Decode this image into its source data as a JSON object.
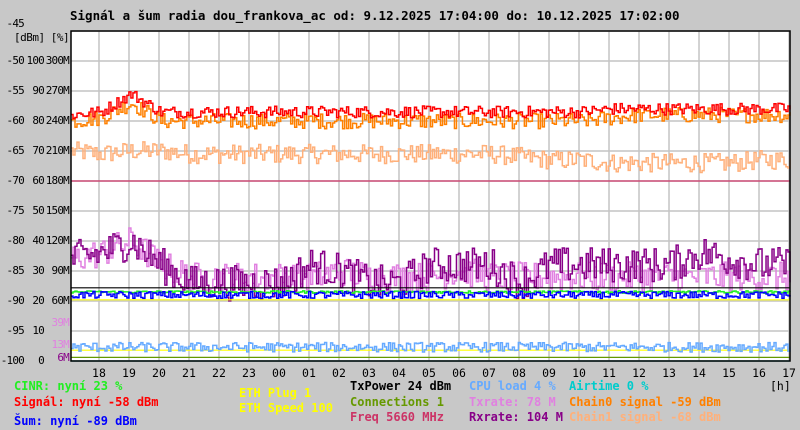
{
  "chart_data": {
    "type": "line",
    "title": "Signál a šum radia dou_frankova_ac od: 9.12.2025 17:04:00 do: 10.12.2025 17:02:00",
    "units_label": "[dBm] [%]",
    "xlabel": "[h]",
    "x_start_hour": 17.067,
    "x_end_hour": 41.033,
    "ylim": [
      -100,
      -45
    ],
    "grid": true,
    "x_ticks": [
      "18",
      "19",
      "20",
      "21",
      "22",
      "23",
      "00",
      "01",
      "02",
      "03",
      "04",
      "05",
      "06",
      "07",
      "08",
      "09",
      "10",
      "11",
      "12",
      "13",
      "14",
      "15",
      "16",
      "17"
    ],
    "y_ticks": [
      {
        "dbm": -45,
        "labels": [
          "-45",
          "",
          ""
        ]
      },
      {
        "dbm": -50,
        "labels": [
          "-50",
          "100",
          "300M"
        ]
      },
      {
        "dbm": -55,
        "labels": [
          "-55",
          "90",
          "270M"
        ]
      },
      {
        "dbm": -60,
        "labels": [
          "-60",
          "80",
          "240M"
        ]
      },
      {
        "dbm": -65,
        "labels": [
          "-65",
          "70",
          "210M"
        ]
      },
      {
        "dbm": -70,
        "labels": [
          "-70",
          "60",
          "180M"
        ]
      },
      {
        "dbm": -75,
        "labels": [
          "-75",
          "50",
          "150M"
        ]
      },
      {
        "dbm": -80,
        "labels": [
          "-80",
          "40",
          "120M"
        ]
      },
      {
        "dbm": -85,
        "labels": [
          "-85",
          "30",
          "90M"
        ]
      },
      {
        "dbm": -90,
        "labels": [
          "-90",
          "20",
          "60M"
        ]
      },
      {
        "dbm": -95,
        "labels": [
          "-95",
          "10",
          ""
        ]
      },
      {
        "dbm": -100,
        "labels": [
          "-100",
          "0",
          ""
        ]
      }
    ],
    "extra_ticks": [
      {
        "dbm": -93.6,
        "label": "39M",
        "color": "#e080e0"
      },
      {
        "dbm": -98.2,
        "label": "13M",
        "color": "#e080e0"
      },
      {
        "dbm": -99.5,
        "label": "6M",
        "color": "#880088"
      }
    ],
    "series": [
      {
        "name": "Chain1 signal",
        "color": "#ffb07a",
        "jitter": 1.6,
        "values": [
          -65,
          -65.5,
          -65,
          -65,
          -65.5,
          -65.5,
          -65.5,
          -65.5,
          -65.5,
          -65.5,
          -65.5,
          -65.5,
          -65.5,
          -65.5,
          -65.5,
          -66,
          -66.5,
          -66.5,
          -67,
          -67,
          -67,
          -67,
          -67,
          -66.5,
          -66.5
        ]
      },
      {
        "name": "Chain0 signal",
        "color": "#ff8000",
        "jitter": 1.3,
        "values": [
          -60,
          -59.5,
          -57,
          -60,
          -60,
          -60,
          -60,
          -60,
          -60,
          -60,
          -60,
          -60,
          -60,
          -60,
          -60,
          -60,
          -60,
          -60,
          -59.5,
          -59,
          -59,
          -59,
          -59,
          -59,
          -59
        ]
      },
      {
        "name": "Signál",
        "color": "#ff0000",
        "jitter": 1.0,
        "values": [
          -59,
          -58.5,
          -55.5,
          -58.5,
          -58.5,
          -58.5,
          -58.5,
          -58.5,
          -58.5,
          -58.5,
          -58.5,
          -58.5,
          -58.5,
          -58.5,
          -58.5,
          -58.5,
          -58.5,
          -58.5,
          -58,
          -58,
          -58,
          -58,
          -58,
          -58,
          -58
        ]
      },
      {
        "name": "Freq",
        "color": "#cc3366",
        "jitter": 0,
        "values": [
          -70,
          -70,
          -70,
          -70,
          -70,
          -70,
          -70,
          -70,
          -70,
          -70,
          -70,
          -70,
          -70,
          -70,
          -70,
          -70,
          -70,
          -70,
          -70,
          -70,
          -70,
          -70,
          -70,
          -70,
          -70
        ]
      },
      {
        "name": "Txrate",
        "color": "#e080e0",
        "jitter": 2.5,
        "values": [
          -83,
          -82,
          -80,
          -84,
          -86,
          -86,
          -86,
          -86,
          -86,
          -85,
          -86,
          -86,
          -86,
          -85,
          -86,
          -86,
          -86,
          -86,
          -86,
          -86,
          -86,
          -86,
          -86,
          -86,
          -86
        ]
      },
      {
        "name": "Rxrate",
        "color": "#880088",
        "jitter": 3.0,
        "values": [
          -83,
          -82,
          -80,
          -84,
          -87,
          -87,
          -87,
          -87,
          -84,
          -85,
          -87,
          -87,
          -84,
          -84,
          -84,
          -87,
          -84,
          -84,
          -84,
          -84,
          -84,
          -82,
          -83,
          -84,
          -84
        ]
      },
      {
        "name": "TxPower",
        "color": "#000000",
        "jitter": 0,
        "values": [
          -87.8,
          -87.8,
          -87.8,
          -87.8,
          -87.8,
          -87.8,
          -87.8,
          -87.8,
          -87.8,
          -87.8,
          -87.8,
          -87.8,
          -87.8,
          -87.8,
          -87.8,
          -87.8,
          -87.8,
          -87.8,
          -87.8,
          -87.8,
          -87.8,
          -87.8,
          -87.8,
          -87.8,
          -87.8
        ]
      },
      {
        "name": "CINR",
        "color": "#22ee22",
        "jitter": 0.2,
        "values": [
          -88.5,
          -88.5,
          -88.5,
          -88.5,
          -88.5,
          -88.5,
          -88.5,
          -88.5,
          -88.5,
          -88.5,
          -88.5,
          -88.5,
          -88.5,
          -88.5,
          -88.5,
          -88.5,
          -88.5,
          -88.5,
          -88.5,
          -88.5,
          -88.5,
          -88.5,
          -88.5,
          -88.5,
          -88.5
        ]
      },
      {
        "name": "Šum",
        "color": "#0000ff",
        "jitter": 0.6,
        "values": [
          -89,
          -89,
          -89,
          -89,
          -89,
          -89,
          -89,
          -89,
          -89,
          -89,
          -89,
          -89,
          -89,
          -89,
          -89,
          -89,
          -89,
          -89,
          -89,
          -89,
          -89,
          -89,
          -89,
          -89,
          -89
        ]
      },
      {
        "name": "ETH Speed",
        "color": "#ffff00",
        "jitter": 0,
        "values": [
          -89.8,
          -89.8,
          -89.8,
          -89.8,
          -89.8,
          -89.8,
          -89.8,
          -89.8,
          -89.8,
          -89.8,
          -89.8,
          -89.8,
          -89.8,
          -89.8,
          -89.8,
          -89.8,
          -89.8,
          -89.8,
          -89.8,
          -89.8,
          -89.8,
          -89.8,
          -89.8,
          -89.8,
          -89.8
        ]
      },
      {
        "name": "ETH Plug",
        "color": "#ffff00",
        "jitter": 0,
        "values": [
          -98.2,
          -98.2,
          -98.2,
          -98.2,
          -98.2,
          -98.2,
          -98.2,
          -98.2,
          -98.2,
          -98.2,
          -98.2,
          -98.2,
          -98.2,
          -98.2,
          -98.2,
          -98.2,
          -98.2,
          -98.2,
          -98.2,
          -98.2,
          -98.2,
          -98.2,
          -98.2,
          -98.2,
          -98.2
        ]
      },
      {
        "name": "CPU load",
        "color": "#66aaff",
        "jitter": 0.8,
        "values": [
          -97.7,
          -97.7,
          -97.7,
          -97.7,
          -97.7,
          -97.7,
          -97.7,
          -97.7,
          -97.7,
          -97.7,
          -97.7,
          -97.7,
          -97.7,
          -97.7,
          -97.7,
          -97.7,
          -97.7,
          -97.7,
          -97.7,
          -97.7,
          -97.7,
          -97.7,
          -97.7,
          -97.7,
          -97.7
        ]
      },
      {
        "name": "Connections",
        "color": "#669900",
        "jitter": 0,
        "values": [
          -99.4,
          -99.4,
          -99.4,
          -99.4,
          -99.4,
          -99.4,
          -99.4,
          -99.4,
          -99.4,
          -99.4,
          -99.4,
          -99.4,
          -99.4,
          -99.4,
          -99.4,
          -99.4,
          -99.4,
          -99.4,
          -99.4,
          -99.4,
          -99.4,
          -99.4,
          -99.4,
          -99.4,
          -99.4
        ]
      },
      {
        "name": "Airtime",
        "color": "#00cccc",
        "jitter": 0,
        "values": [
          -100,
          -100,
          -100,
          -100,
          -100,
          -100,
          -100,
          -100,
          -100,
          -100,
          -100,
          -100,
          -100,
          -100,
          -100,
          -100,
          -100,
          -100,
          -100,
          -100,
          -100,
          -100,
          -100,
          -100,
          -100
        ]
      }
    ]
  },
  "legend": {
    "cinr": "CINR: nyní 23 %",
    "signal": "Signál: nyní -58 dBm",
    "noise": "Šum: nyní -89 dBm",
    "eth_plug": "ETH Plug 1",
    "eth_speed": "ETH Speed 100",
    "txpower": "TxPower 24 dBm",
    "connections": "Connections 1",
    "freq": "Freq 5660 MHz",
    "cpu": "CPU load 4 %",
    "txrate": "Txrate: 78 M",
    "rxrate": "Rxrate: 104 M",
    "airtime": "Airtime 0 %",
    "chain0": "Chain0 signal -59 dBm",
    "chain1": "Chain1 signal -68 dBm"
  },
  "colors": {
    "cinr": "#22ee22",
    "signal": "#ff0000",
    "noise": "#0000ff",
    "eth": "#ffff00",
    "txpower": "#000000",
    "connections": "#669900",
    "freq": "#cc3366",
    "cpu": "#66aaff",
    "txrate": "#e080e0",
    "rxrate": "#880088",
    "airtime": "#00cccc",
    "chain0": "#ff8000",
    "chain1": "#ffb07a"
  }
}
